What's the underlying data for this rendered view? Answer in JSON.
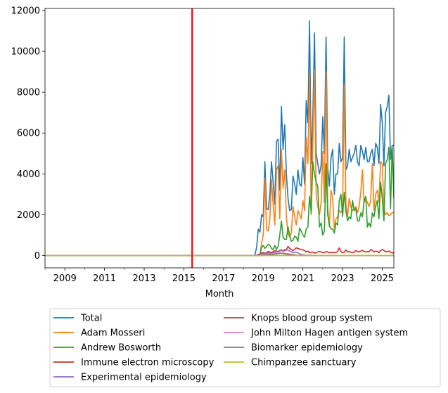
{
  "chart_data": {
    "type": "line",
    "title": "",
    "xlabel": "Month",
    "ylabel": "",
    "xlim": [
      "2008-01",
      "2025-08"
    ],
    "ylim": [
      -600,
      12100
    ],
    "x_ticks": [
      "2009",
      "2011",
      "2013",
      "2015",
      "2017",
      "2019",
      "2021",
      "2023",
      "2025"
    ],
    "y_ticks": [
      "0",
      "2000",
      "4000",
      "6000",
      "8000",
      "10000",
      "12000"
    ],
    "grid": false,
    "legend_position": "below",
    "reference_line": {
      "x": "2015-06",
      "color": "#ff0000"
    },
    "x": [
      "2018-08",
      "2018-09",
      "2018-10",
      "2018-11",
      "2018-12",
      "2019-01",
      "2019-02",
      "2019-03",
      "2019-04",
      "2019-05",
      "2019-06",
      "2019-07",
      "2019-08",
      "2019-09",
      "2019-10",
      "2019-11",
      "2019-12",
      "2020-01",
      "2020-02",
      "2020-03",
      "2020-04",
      "2020-05",
      "2020-06",
      "2020-07",
      "2020-08",
      "2020-09",
      "2020-10",
      "2020-11",
      "2020-12",
      "2021-01",
      "2021-02",
      "2021-03",
      "2021-04",
      "2021-05",
      "2021-06",
      "2021-07",
      "2021-08",
      "2021-09",
      "2021-10",
      "2021-11",
      "2021-12",
      "2022-01",
      "2022-02",
      "2022-03",
      "2022-04",
      "2022-05",
      "2022-06",
      "2022-07",
      "2022-08",
      "2022-09",
      "2022-10",
      "2022-11",
      "2022-12",
      "2023-01",
      "2023-02",
      "2023-03",
      "2023-04",
      "2023-05",
      "2023-06",
      "2023-07",
      "2023-08",
      "2023-09",
      "2023-10",
      "2023-11",
      "2023-12",
      "2024-01",
      "2024-02",
      "2024-03",
      "2024-04",
      "2024-05",
      "2024-06",
      "2024-07",
      "2024-08",
      "2024-09",
      "2024-10",
      "2024-11",
      "2024-12",
      "2025-01",
      "2025-02",
      "2025-03",
      "2025-04",
      "2025-05",
      "2025-06",
      "2025-07",
      "2025-08"
    ],
    "series": [
      {
        "name": "Total",
        "color": "#1f77b4",
        "values": [
          50,
          400,
          1300,
          1150,
          2000,
          1900,
          4600,
          2300,
          2250,
          3000,
          4600,
          3600,
          2500,
          5600,
          5700,
          3200,
          7300,
          5200,
          6400,
          4000,
          2800,
          2200,
          2250,
          3900,
          3500,
          3000,
          4200,
          3500,
          3400,
          4800,
          3500,
          7600,
          6500,
          11500,
          4500,
          6800,
          10900,
          5000,
          4500,
          4000,
          4400,
          6800,
          5000,
          10700,
          4300,
          3400,
          4800,
          5200,
          3000,
          4000,
          4000,
          5500,
          4600,
          4800,
          10700,
          4200,
          4400,
          5200,
          4600,
          4800,
          5000,
          5400,
          4600,
          4400,
          5400,
          5100,
          4700,
          5300,
          4600,
          4600,
          5000,
          5200,
          4400,
          5500,
          5300,
          4500,
          7400,
          6500,
          4400,
          7000,
          7300,
          7850,
          4700,
          5400,
          5400
        ]
      },
      {
        "name": "Adam Mosseri",
        "color": "#ff7f0e",
        "values": [
          0,
          0,
          0,
          0,
          600,
          1000,
          3800,
          1300,
          1200,
          1800,
          3700,
          2500,
          1500,
          4200,
          4400,
          1800,
          5200,
          3300,
          4200,
          1900,
          1100,
          900,
          1100,
          2400,
          1900,
          1500,
          2200,
          2000,
          1800,
          2700,
          2200,
          5800,
          4500,
          8900,
          2000,
          5500,
          9100,
          3000,
          2400,
          2000,
          2600,
          5100,
          2600,
          9000,
          2300,
          1400,
          3200,
          2800,
          1300,
          1800,
          1900,
          2200,
          2100,
          2300,
          8400,
          2500,
          1900,
          2800,
          2400,
          2200,
          2300,
          2400,
          2100,
          2400,
          3100,
          4200,
          2600,
          2800,
          2600,
          2400,
          2700,
          4500,
          2200,
          3000,
          3200,
          2600,
          4600,
          4500,
          2300,
          2000,
          2100,
          1950,
          2000,
          2100,
          2100
        ]
      },
      {
        "name": "Andrew Bosworth",
        "color": "#2ca02c",
        "values": [
          0,
          0,
          0,
          0,
          400,
          500,
          350,
          450,
          550,
          500,
          350,
          300,
          500,
          300,
          450,
          1000,
          1700,
          900,
          800,
          800,
          1400,
          1000,
          700,
          750,
          950,
          900,
          700,
          1350,
          1200,
          1000,
          900,
          1300,
          1400,
          2900,
          2100,
          4600,
          4000,
          3600,
          3400,
          1400,
          1600,
          1000,
          1200,
          4500,
          2000,
          1500,
          1300,
          1300,
          1100,
          1600,
          1500,
          2700,
          3000,
          1900,
          3100,
          2200,
          1700,
          1900,
          1800,
          2700,
          2200,
          2300,
          1700,
          1700,
          2100,
          1900,
          2700,
          2900,
          1400,
          1600,
          1400,
          2100,
          1900,
          2400,
          2700,
          1800,
          3600,
          2800,
          1700,
          4500,
          4700,
          5300,
          2300,
          5400,
          2800
        ]
      },
      {
        "name": "Immune electron microscopy",
        "color": "#d62728",
        "values": [
          0,
          20,
          60,
          80,
          120,
          150,
          120,
          150,
          200,
          180,
          150,
          200,
          250,
          220,
          200,
          260,
          280,
          220,
          240,
          300,
          450,
          350,
          300,
          250,
          300,
          380,
          350,
          320,
          300,
          280,
          250,
          180,
          220,
          150,
          160,
          180,
          120,
          140,
          180,
          200,
          180,
          150,
          140,
          200,
          180,
          140,
          150,
          160,
          140,
          150,
          200,
          380,
          200,
          140,
          160,
          280,
          180,
          200,
          160,
          150,
          160,
          250,
          200,
          180,
          220,
          260,
          200,
          180,
          200,
          180,
          300,
          250,
          180,
          220,
          200,
          150,
          250,
          300,
          260,
          180,
          200,
          220,
          180,
          120,
          160
        ]
      },
      {
        "name": "Experimental epidemiology",
        "color": "#9467bd",
        "values": [
          0,
          10,
          40,
          60,
          80,
          100,
          100,
          120,
          140,
          130,
          120,
          150,
          160,
          180,
          200,
          220,
          250,
          240,
          300,
          280,
          260,
          220,
          200,
          150,
          160,
          150,
          140,
          80,
          60,
          40,
          30,
          20,
          20,
          20,
          20,
          10,
          10,
          10,
          10,
          10,
          10,
          10,
          10,
          10,
          10,
          10,
          10,
          10,
          10,
          10,
          10,
          10,
          10,
          10,
          10,
          10,
          10,
          10,
          10,
          10,
          10,
          10,
          10,
          10,
          10,
          10,
          10,
          10,
          10,
          10,
          10,
          10,
          10,
          10,
          10,
          10,
          10,
          10,
          10,
          10,
          10,
          10,
          10,
          10,
          10
        ]
      },
      {
        "name": "Knops blood group system",
        "color": "#8c564b",
        "values": [
          0,
          0,
          0,
          0,
          10,
          10,
          10,
          10,
          10,
          10,
          10,
          10,
          10,
          10,
          10,
          10,
          10,
          10,
          10,
          10,
          10,
          10,
          10,
          10,
          10,
          10,
          10,
          10,
          10,
          10,
          10,
          10,
          10,
          10,
          10,
          10,
          10,
          10,
          10,
          10,
          10,
          10,
          10,
          10,
          10,
          10,
          10,
          10,
          10,
          10,
          10,
          10,
          10,
          10,
          10,
          10,
          10,
          10,
          10,
          10,
          10,
          10,
          10,
          10,
          10,
          10,
          10,
          10,
          10,
          10,
          10,
          10,
          10,
          10,
          10,
          10,
          10,
          10,
          10,
          10,
          10,
          10,
          10,
          10,
          10
        ]
      },
      {
        "name": "John Milton Hagen antigen system",
        "color": "#e377c2",
        "values": [
          0,
          0,
          20,
          40,
          60,
          60,
          70,
          80,
          90,
          80,
          70,
          80,
          100,
          110,
          120,
          130,
          130,
          120,
          110,
          100,
          90,
          80,
          70,
          60,
          40,
          20,
          10,
          10,
          10,
          10,
          10,
          10,
          10,
          10,
          10,
          10,
          10,
          10,
          10,
          10,
          10,
          10,
          10,
          10,
          10,
          10,
          10,
          10,
          10,
          10,
          10,
          10,
          10,
          10,
          10,
          10,
          10,
          10,
          10,
          10,
          10,
          10,
          10,
          10,
          10,
          10,
          10,
          10,
          10,
          10,
          10,
          10,
          10,
          10,
          10,
          10,
          10,
          10,
          10,
          10,
          10,
          10,
          10,
          10,
          10
        ]
      },
      {
        "name": "Biomarker epidemiology",
        "color": "#7f7f7f",
        "values": [
          0,
          0,
          10,
          20,
          30,
          40,
          40,
          50,
          50,
          60,
          60,
          70,
          80,
          90,
          100,
          110,
          120,
          100,
          90,
          80,
          60,
          50,
          40,
          30,
          20,
          20,
          10,
          10,
          10,
          10,
          10,
          10,
          10,
          10,
          10,
          10,
          10,
          10,
          10,
          10,
          10,
          10,
          10,
          10,
          10,
          10,
          10,
          10,
          10,
          10,
          10,
          10,
          10,
          10,
          10,
          10,
          10,
          10,
          10,
          10,
          10,
          10,
          10,
          10,
          10,
          10,
          10,
          10,
          10,
          10,
          10,
          10,
          10,
          10,
          10,
          10,
          10,
          10,
          10,
          10,
          10,
          10,
          10,
          10,
          10
        ]
      },
      {
        "name": "Chimpanzee sanctuary",
        "color": "#bcbd22",
        "values": [
          0,
          0,
          0,
          0,
          5,
          5,
          5,
          5,
          5,
          5,
          5,
          5,
          5,
          5,
          5,
          5,
          5,
          5,
          5,
          5,
          5,
          5,
          5,
          5,
          5,
          5,
          5,
          5,
          5,
          5,
          5,
          5,
          5,
          5,
          5,
          5,
          5,
          5,
          5,
          5,
          5,
          5,
          5,
          5,
          5,
          5,
          5,
          5,
          5,
          5,
          5,
          5,
          5,
          5,
          5,
          5,
          5,
          5,
          5,
          5,
          5,
          5,
          5,
          5,
          5,
          5,
          5,
          5,
          5,
          5,
          5,
          5,
          5,
          5,
          5,
          5,
          5,
          5,
          5,
          5,
          5,
          5,
          5,
          5,
          5
        ]
      }
    ]
  }
}
